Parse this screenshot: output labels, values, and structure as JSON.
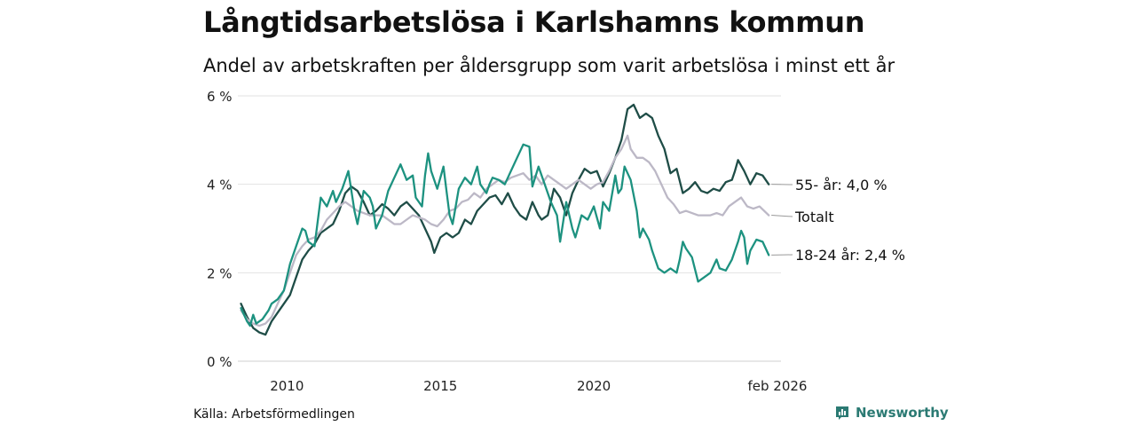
{
  "title": "Långtidsarbetslösa i Karlshamns kommun",
  "subtitle": "Andel av arbetskraften per åldersgrupp som varit arbetslösa i minst ett år",
  "source": "Källa: Arbetsförmedlingen",
  "brand": "Newsworthy",
  "logo_icon": "bar-chart-speech-bubble-icon",
  "chart_data": {
    "type": "line",
    "x_unit": "year (decimal)",
    "xlim": [
      2008.4,
      2026.1
    ],
    "ylim": [
      0,
      6
    ],
    "y_ticks": [
      0,
      2,
      4,
      6
    ],
    "y_tick_labels": [
      "0 %",
      "2 %",
      "4 %",
      "6 %"
    ],
    "x_ticks": [
      2010,
      2015,
      2020,
      2026.08
    ],
    "x_tick_labels": [
      "2010",
      "2015",
      "2020",
      "feb 2026"
    ],
    "grid": true,
    "series": [
      {
        "name": "55- år",
        "end_label": "55- år: 4,0 %",
        "color": "#1f4d47",
        "width": 2.3,
        "points": [
          [
            2008.5,
            1.3
          ],
          [
            2008.7,
            1.0
          ],
          [
            2008.9,
            0.75
          ],
          [
            2009.1,
            0.65
          ],
          [
            2009.3,
            0.6
          ],
          [
            2009.5,
            0.9
          ],
          [
            2009.7,
            1.1
          ],
          [
            2009.9,
            1.3
          ],
          [
            2010.1,
            1.5
          ],
          [
            2010.3,
            1.9
          ],
          [
            2010.5,
            2.3
          ],
          [
            2010.7,
            2.5
          ],
          [
            2010.9,
            2.65
          ],
          [
            2011.1,
            2.9
          ],
          [
            2011.3,
            3.0
          ],
          [
            2011.5,
            3.1
          ],
          [
            2011.7,
            3.4
          ],
          [
            2011.9,
            3.8
          ],
          [
            2012.1,
            3.95
          ],
          [
            2012.3,
            3.85
          ],
          [
            2012.5,
            3.6
          ],
          [
            2012.7,
            3.3
          ],
          [
            2012.9,
            3.4
          ],
          [
            2013.1,
            3.55
          ],
          [
            2013.3,
            3.45
          ],
          [
            2013.5,
            3.3
          ],
          [
            2013.7,
            3.5
          ],
          [
            2013.9,
            3.6
          ],
          [
            2014.1,
            3.45
          ],
          [
            2014.3,
            3.3
          ],
          [
            2014.5,
            3.0
          ],
          [
            2014.7,
            2.7
          ],
          [
            2014.8,
            2.45
          ],
          [
            2015.0,
            2.8
          ],
          [
            2015.2,
            2.9
          ],
          [
            2015.4,
            2.8
          ],
          [
            2015.6,
            2.9
          ],
          [
            2015.8,
            3.2
          ],
          [
            2016.0,
            3.1
          ],
          [
            2016.2,
            3.4
          ],
          [
            2016.4,
            3.55
          ],
          [
            2016.6,
            3.7
          ],
          [
            2016.8,
            3.75
          ],
          [
            2017.0,
            3.55
          ],
          [
            2017.2,
            3.8
          ],
          [
            2017.4,
            3.5
          ],
          [
            2017.6,
            3.3
          ],
          [
            2017.8,
            3.2
          ],
          [
            2018.0,
            3.6
          ],
          [
            2018.2,
            3.3
          ],
          [
            2018.3,
            3.2
          ],
          [
            2018.5,
            3.3
          ],
          [
            2018.7,
            3.9
          ],
          [
            2018.9,
            3.7
          ],
          [
            2019.1,
            3.3
          ],
          [
            2019.3,
            3.8
          ],
          [
            2019.5,
            4.1
          ],
          [
            2019.7,
            4.35
          ],
          [
            2019.9,
            4.25
          ],
          [
            2020.1,
            4.3
          ],
          [
            2020.3,
            3.95
          ],
          [
            2020.5,
            4.25
          ],
          [
            2020.7,
            4.6
          ],
          [
            2020.9,
            5.0
          ],
          [
            2021.1,
            5.7
          ],
          [
            2021.3,
            5.8
          ],
          [
            2021.5,
            5.5
          ],
          [
            2021.7,
            5.6
          ],
          [
            2021.9,
            5.5
          ],
          [
            2022.1,
            5.1
          ],
          [
            2022.3,
            4.8
          ],
          [
            2022.5,
            4.25
          ],
          [
            2022.7,
            4.35
          ],
          [
            2022.9,
            3.8
          ],
          [
            2023.1,
            3.9
          ],
          [
            2023.3,
            4.05
          ],
          [
            2023.5,
            3.85
          ],
          [
            2023.7,
            3.8
          ],
          [
            2023.9,
            3.9
          ],
          [
            2024.1,
            3.85
          ],
          [
            2024.3,
            4.05
          ],
          [
            2024.5,
            4.1
          ],
          [
            2024.6,
            4.3
          ],
          [
            2024.7,
            4.55
          ],
          [
            2024.9,
            4.3
          ],
          [
            2025.1,
            4.0
          ],
          [
            2025.3,
            4.25
          ],
          [
            2025.5,
            4.2
          ],
          [
            2025.7,
            4.0
          ]
        ]
      },
      {
        "name": "Totalt",
        "end_label": "Totalt",
        "color": "#bcb8c6",
        "width": 2.3,
        "points": [
          [
            2008.5,
            1.15
          ],
          [
            2008.7,
            0.95
          ],
          [
            2008.9,
            0.85
          ],
          [
            2009.1,
            0.8
          ],
          [
            2009.3,
            0.85
          ],
          [
            2009.5,
            1.0
          ],
          [
            2009.7,
            1.3
          ],
          [
            2009.9,
            1.6
          ],
          [
            2010.1,
            2.0
          ],
          [
            2010.3,
            2.4
          ],
          [
            2010.5,
            2.6
          ],
          [
            2010.7,
            2.75
          ],
          [
            2010.9,
            2.8
          ],
          [
            2011.1,
            2.95
          ],
          [
            2011.3,
            3.2
          ],
          [
            2011.5,
            3.35
          ],
          [
            2011.7,
            3.5
          ],
          [
            2011.9,
            3.6
          ],
          [
            2012.1,
            3.5
          ],
          [
            2012.3,
            3.4
          ],
          [
            2012.5,
            3.35
          ],
          [
            2012.7,
            3.3
          ],
          [
            2012.9,
            3.3
          ],
          [
            2013.1,
            3.3
          ],
          [
            2013.3,
            3.2
          ],
          [
            2013.5,
            3.1
          ],
          [
            2013.7,
            3.1
          ],
          [
            2013.9,
            3.2
          ],
          [
            2014.1,
            3.3
          ],
          [
            2014.3,
            3.25
          ],
          [
            2014.5,
            3.2
          ],
          [
            2014.7,
            3.1
          ],
          [
            2014.9,
            3.05
          ],
          [
            2015.1,
            3.2
          ],
          [
            2015.3,
            3.4
          ],
          [
            2015.5,
            3.45
          ],
          [
            2015.7,
            3.6
          ],
          [
            2015.9,
            3.65
          ],
          [
            2016.1,
            3.8
          ],
          [
            2016.3,
            3.7
          ],
          [
            2016.5,
            3.9
          ],
          [
            2016.7,
            4.0
          ],
          [
            2016.9,
            4.1
          ],
          [
            2017.1,
            4.05
          ],
          [
            2017.3,
            4.15
          ],
          [
            2017.5,
            4.2
          ],
          [
            2017.7,
            4.25
          ],
          [
            2017.9,
            4.1
          ],
          [
            2018.1,
            4.2
          ],
          [
            2018.3,
            4.0
          ],
          [
            2018.5,
            4.2
          ],
          [
            2018.7,
            4.1
          ],
          [
            2018.9,
            4.0
          ],
          [
            2019.1,
            3.9
          ],
          [
            2019.3,
            4.0
          ],
          [
            2019.5,
            4.1
          ],
          [
            2019.7,
            4.0
          ],
          [
            2019.9,
            3.9
          ],
          [
            2020.1,
            4.0
          ],
          [
            2020.3,
            4.05
          ],
          [
            2020.5,
            4.3
          ],
          [
            2020.7,
            4.6
          ],
          [
            2020.9,
            4.8
          ],
          [
            2021.1,
            5.1
          ],
          [
            2021.2,
            4.8
          ],
          [
            2021.4,
            4.6
          ],
          [
            2021.6,
            4.6
          ],
          [
            2021.8,
            4.5
          ],
          [
            2022.0,
            4.3
          ],
          [
            2022.2,
            4.0
          ],
          [
            2022.4,
            3.7
          ],
          [
            2022.6,
            3.55
          ],
          [
            2022.8,
            3.35
          ],
          [
            2023.0,
            3.4
          ],
          [
            2023.2,
            3.35
          ],
          [
            2023.4,
            3.3
          ],
          [
            2023.6,
            3.3
          ],
          [
            2023.8,
            3.3
          ],
          [
            2024.0,
            3.35
          ],
          [
            2024.2,
            3.3
          ],
          [
            2024.4,
            3.5
          ],
          [
            2024.6,
            3.6
          ],
          [
            2024.8,
            3.7
          ],
          [
            2025.0,
            3.5
          ],
          [
            2025.2,
            3.45
          ],
          [
            2025.4,
            3.5
          ],
          [
            2025.7,
            3.3
          ]
        ]
      },
      {
        "name": "18-24 år",
        "end_label": "18-24 år: 2,4 %",
        "color": "#1d9280",
        "width": 2.3,
        "points": [
          [
            2008.5,
            1.2
          ],
          [
            2008.7,
            0.9
          ],
          [
            2008.8,
            0.8
          ],
          [
            2008.9,
            1.05
          ],
          [
            2009.0,
            0.85
          ],
          [
            2009.2,
            0.95
          ],
          [
            2009.4,
            1.15
          ],
          [
            2009.5,
            1.3
          ],
          [
            2009.7,
            1.4
          ],
          [
            2009.9,
            1.6
          ],
          [
            2010.1,
            2.2
          ],
          [
            2010.3,
            2.6
          ],
          [
            2010.5,
            3.0
          ],
          [
            2010.6,
            2.95
          ],
          [
            2010.7,
            2.7
          ],
          [
            2010.9,
            2.6
          ],
          [
            2011.1,
            3.7
          ],
          [
            2011.3,
            3.5
          ],
          [
            2011.5,
            3.85
          ],
          [
            2011.6,
            3.6
          ],
          [
            2011.8,
            3.9
          ],
          [
            2012.0,
            4.3
          ],
          [
            2012.2,
            3.4
          ],
          [
            2012.3,
            3.1
          ],
          [
            2012.5,
            3.85
          ],
          [
            2012.7,
            3.7
          ],
          [
            2012.8,
            3.5
          ],
          [
            2012.9,
            3.0
          ],
          [
            2013.1,
            3.3
          ],
          [
            2013.3,
            3.85
          ],
          [
            2013.5,
            4.15
          ],
          [
            2013.7,
            4.45
          ],
          [
            2013.9,
            4.1
          ],
          [
            2014.1,
            4.2
          ],
          [
            2014.2,
            3.7
          ],
          [
            2014.4,
            3.5
          ],
          [
            2014.5,
            4.2
          ],
          [
            2014.6,
            4.7
          ],
          [
            2014.7,
            4.3
          ],
          [
            2014.9,
            3.9
          ],
          [
            2015.1,
            4.4
          ],
          [
            2015.2,
            3.85
          ],
          [
            2015.3,
            3.3
          ],
          [
            2015.4,
            3.1
          ],
          [
            2015.6,
            3.9
          ],
          [
            2015.8,
            4.15
          ],
          [
            2016.0,
            4.0
          ],
          [
            2016.2,
            4.4
          ],
          [
            2016.3,
            4.0
          ],
          [
            2016.5,
            3.8
          ],
          [
            2016.6,
            4.0
          ],
          [
            2016.7,
            4.15
          ],
          [
            2016.9,
            4.1
          ],
          [
            2017.1,
            4.0
          ],
          [
            2017.3,
            4.3
          ],
          [
            2017.5,
            4.6
          ],
          [
            2017.7,
            4.9
          ],
          [
            2017.9,
            4.85
          ],
          [
            2018.0,
            3.95
          ],
          [
            2018.2,
            4.4
          ],
          [
            2018.4,
            4.0
          ],
          [
            2018.6,
            3.6
          ],
          [
            2018.8,
            3.3
          ],
          [
            2018.9,
            2.7
          ],
          [
            2019.1,
            3.6
          ],
          [
            2019.3,
            3.0
          ],
          [
            2019.4,
            2.8
          ],
          [
            2019.6,
            3.3
          ],
          [
            2019.8,
            3.2
          ],
          [
            2020.0,
            3.5
          ],
          [
            2020.2,
            3.0
          ],
          [
            2020.3,
            3.6
          ],
          [
            2020.5,
            3.4
          ],
          [
            2020.7,
            4.2
          ],
          [
            2020.8,
            3.8
          ],
          [
            2020.9,
            3.9
          ],
          [
            2021.0,
            4.4
          ],
          [
            2021.2,
            4.1
          ],
          [
            2021.4,
            3.4
          ],
          [
            2021.5,
            2.8
          ],
          [
            2021.6,
            3.0
          ],
          [
            2021.8,
            2.75
          ],
          [
            2021.9,
            2.5
          ],
          [
            2022.1,
            2.1
          ],
          [
            2022.3,
            2.0
          ],
          [
            2022.5,
            2.1
          ],
          [
            2022.7,
            2.0
          ],
          [
            2022.8,
            2.3
          ],
          [
            2022.9,
            2.7
          ],
          [
            2023.0,
            2.55
          ],
          [
            2023.2,
            2.35
          ],
          [
            2023.4,
            1.8
          ],
          [
            2023.6,
            1.9
          ],
          [
            2023.8,
            2.0
          ],
          [
            2024.0,
            2.3
          ],
          [
            2024.1,
            2.1
          ],
          [
            2024.3,
            2.05
          ],
          [
            2024.5,
            2.3
          ],
          [
            2024.7,
            2.7
          ],
          [
            2024.8,
            2.95
          ],
          [
            2024.9,
            2.8
          ],
          [
            2025.0,
            2.2
          ],
          [
            2025.1,
            2.5
          ],
          [
            2025.3,
            2.75
          ],
          [
            2025.5,
            2.7
          ],
          [
            2025.7,
            2.4
          ]
        ]
      }
    ]
  }
}
